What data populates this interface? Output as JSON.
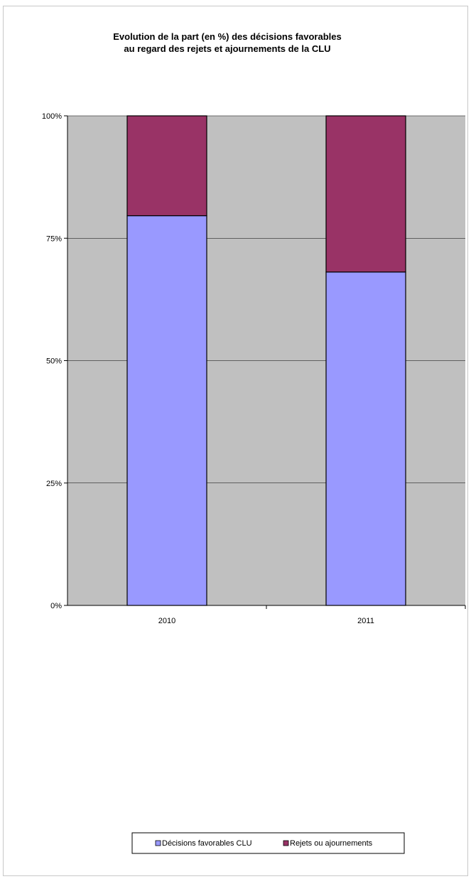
{
  "chart_data": {
    "type": "bar",
    "stacked": true,
    "percent_stacked": true,
    "title": [
      "Evolution de la part (en %) des décisions favorables",
      "au regard des rejets et ajournements de la CLU"
    ],
    "categories": [
      "2010",
      "2011"
    ],
    "series": [
      {
        "name": "Décisions favorables CLU",
        "values": [
          79.6,
          68.1
        ],
        "color": "#9999FF"
      },
      {
        "name": "Rejets ou ajournements",
        "values": [
          20.4,
          31.9
        ],
        "color": "#993366"
      }
    ],
    "y_ticks": [
      "0%",
      "25%",
      "50%",
      "75%",
      "100%"
    ],
    "ylim": [
      0,
      100
    ],
    "grid": true,
    "plot_background": "#C0C0C0",
    "legend_position": "bottom"
  }
}
